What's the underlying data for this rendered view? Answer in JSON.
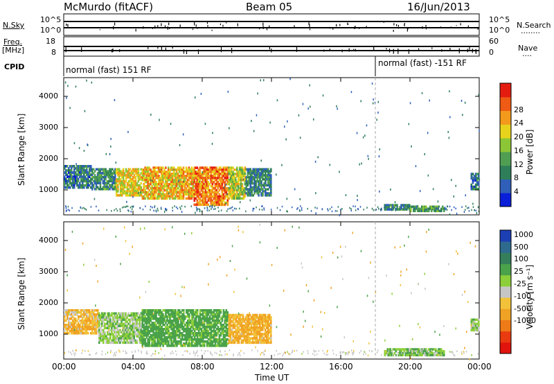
{
  "header": {
    "station": "McMurdo (fitACF)",
    "beam": "Beam 05",
    "date": "16/Jun/2013"
  },
  "side_labels": {
    "n_sky": "N.Sky",
    "freq": "Freq.",
    "freq_unit": "[MHz]",
    "cpid": "CPID",
    "n_search": "N.Search",
    "n_search_dots": "........",
    "nave": "Nave",
    "nave_dots": "....",
    "nsky_top": "10^5",
    "nsky_bottom": "10^0",
    "nsearch_top": "10^5",
    "nsearch_bottom": "10^0",
    "freq_top": "18",
    "freq_bottom": "8",
    "nave_top": "60",
    "nave_bottom": "0"
  },
  "cpid_labels": {
    "first": "normal (fast) 151 RF",
    "second": "normal (fast) -151 RF"
  },
  "axes": {
    "ylabel": "Slant Range [km]",
    "xlabel": "Time UT",
    "yticks": [
      "1000",
      "2000",
      "3000",
      "4000"
    ],
    "xticks": [
      "00:00",
      "04:00",
      "08:00",
      "12:00",
      "16:00",
      "20:00",
      "00:00"
    ]
  },
  "colorbars": {
    "power": {
      "label": "Power [dB]",
      "ticks": [
        "4",
        "8",
        "12",
        "16",
        "20",
        "24",
        "28"
      ],
      "colors": [
        "#0a1fd8",
        "#2f5fb8",
        "#2e7e5a",
        "#4f9e52",
        "#8cc636",
        "#e7d31c",
        "#f39a1c",
        "#ef5a14",
        "#e41c10"
      ]
    },
    "velocity": {
      "label": "Velocity [m s⁻¹]",
      "ticks": [
        "1000",
        "500",
        "100",
        "25",
        "-25",
        "-100",
        "-500",
        "-1000"
      ],
      "colors": [
        "#1d3fb4",
        "#2e6a8e",
        "#347e5c",
        "#4aa24a",
        "#8dcf3a",
        "#c6c6c6",
        "#f2c23a",
        "#f0a224",
        "#ef7a18",
        "#ea3a10",
        "#e0140c"
      ]
    }
  },
  "chart_data": [
    {
      "type": "heatmap",
      "title": "Power",
      "xlabel": "Time UT",
      "ylabel": "Slant Range [km]",
      "x_range_hours": [
        0,
        24
      ],
      "ylim": [
        200,
        4600
      ],
      "cpid_change_hour": 18,
      "colorbar": {
        "label": "Power [dB]",
        "ticks": [
          4,
          8,
          12,
          16,
          20,
          24,
          28
        ]
      },
      "regions": [
        {
          "t": [
            0.0,
            1.6
          ],
          "range": [
            1050,
            1800
          ],
          "power_dB": 7
        },
        {
          "t": [
            1.6,
            3.0
          ],
          "range": [
            1000,
            1700
          ],
          "power_dB": 9
        },
        {
          "t": [
            3.0,
            4.5
          ],
          "range": [
            800,
            1700
          ],
          "power_dB": 20
        },
        {
          "t": [
            4.5,
            7.5
          ],
          "range": [
            700,
            1750
          ],
          "power_dB": 22
        },
        {
          "t": [
            7.5,
            9.5
          ],
          "range": [
            500,
            1750
          ],
          "power_dB": 26
        },
        {
          "t": [
            9.5,
            10.5
          ],
          "range": [
            700,
            1750
          ],
          "power_dB": 18
        },
        {
          "t": [
            10.5,
            12.0
          ],
          "range": [
            800,
            1700
          ],
          "power_dB": 8
        },
        {
          "t": [
            18.5,
            20.0
          ],
          "range": [
            350,
            550
          ],
          "power_dB": 9
        },
        {
          "t": [
            20.0,
            22.0
          ],
          "range": [
            300,
            500
          ],
          "power_dB": 12
        },
        {
          "t": [
            23.5,
            24.0
          ],
          "range": [
            1000,
            1550
          ],
          "power_dB": 6
        }
      ]
    },
    {
      "type": "heatmap",
      "title": "Velocity",
      "xlabel": "Time UT",
      "ylabel": "Slant Range [km]",
      "x_range_hours": [
        0,
        24
      ],
      "ylim": [
        200,
        4600
      ],
      "cpid_change_hour": 18,
      "colorbar": {
        "label": "Velocity [m s-1]",
        "ticks": [
          1000,
          500,
          100,
          25,
          -25,
          -100,
          -500,
          -1000
        ]
      },
      "regions": [
        {
          "t": [
            0.0,
            2.0
          ],
          "range": [
            1000,
            1800
          ],
          "velocity": -80
        },
        {
          "t": [
            2.0,
            4.5
          ],
          "range": [
            700,
            1700
          ],
          "velocity": 60
        },
        {
          "t": [
            4.5,
            9.5
          ],
          "range": [
            600,
            1800
          ],
          "velocity": 150
        },
        {
          "t": [
            9.5,
            12.0
          ],
          "range": [
            700,
            1650
          ],
          "velocity": -100
        },
        {
          "t": [
            18.5,
            22.0
          ],
          "range": [
            300,
            550
          ],
          "velocity": 100
        },
        {
          "t": [
            23.5,
            24.0
          ],
          "range": [
            1100,
            1500
          ],
          "velocity": 50
        }
      ]
    }
  ]
}
